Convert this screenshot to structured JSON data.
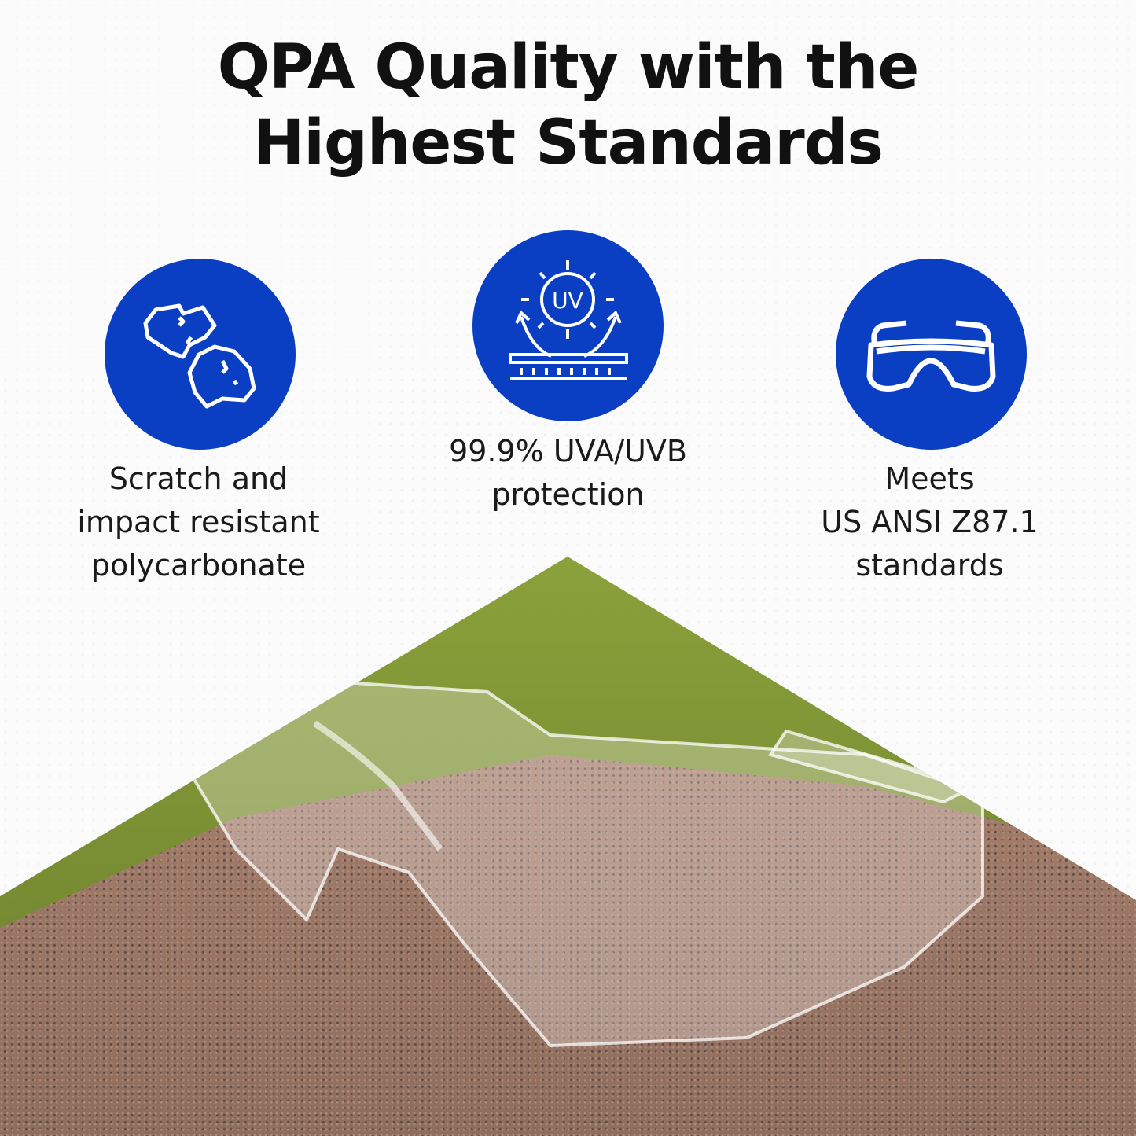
{
  "title": {
    "line1": "QPA Quality with the",
    "line2": "Highest Standards"
  },
  "accent_color": "#0a3fc4",
  "features": [
    {
      "icon": "scratch-resistant-rocks-icon",
      "lines": [
        "Scratch and",
        "impact resistant",
        "polycarbonate"
      ]
    },
    {
      "icon": "uv-protection-icon",
      "icon_text": "UV",
      "lines": [
        "99.9% UVA/UVB",
        "protection"
      ]
    },
    {
      "icon": "safety-goggles-icon",
      "lines": [
        "Meets",
        "US ANSI Z87.1",
        "standards"
      ]
    }
  ]
}
